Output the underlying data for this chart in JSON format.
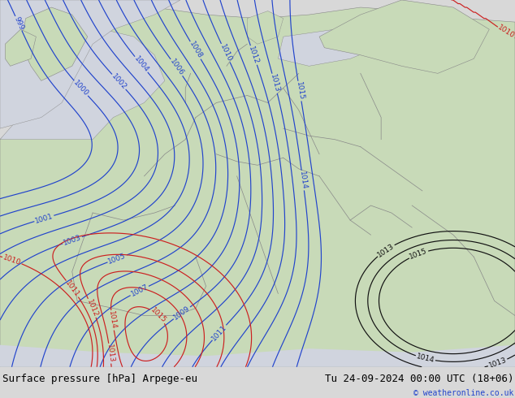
{
  "title_left": "Surface pressure [hPa] Arpege-eu",
  "title_right": "Tu 24-09-2024 00:00 UTC (18+06)",
  "credit": "© weatheronline.co.uk",
  "bg_color": "#d8d8d8",
  "sea_color": "#d0d4de",
  "land_green_color": "#c8dab8",
  "land_gray_color": "#c8c8c8",
  "contour_blue": "#2244cc",
  "contour_red": "#cc2020",
  "contour_black": "#111111",
  "border_color": "#888888",
  "bottom_bar_color": "#e8e8e0",
  "title_fontsize": 9,
  "credit_fontsize": 7,
  "label_fontsize": 6.5,
  "figsize": [
    6.34,
    4.9
  ],
  "dpi": 100
}
